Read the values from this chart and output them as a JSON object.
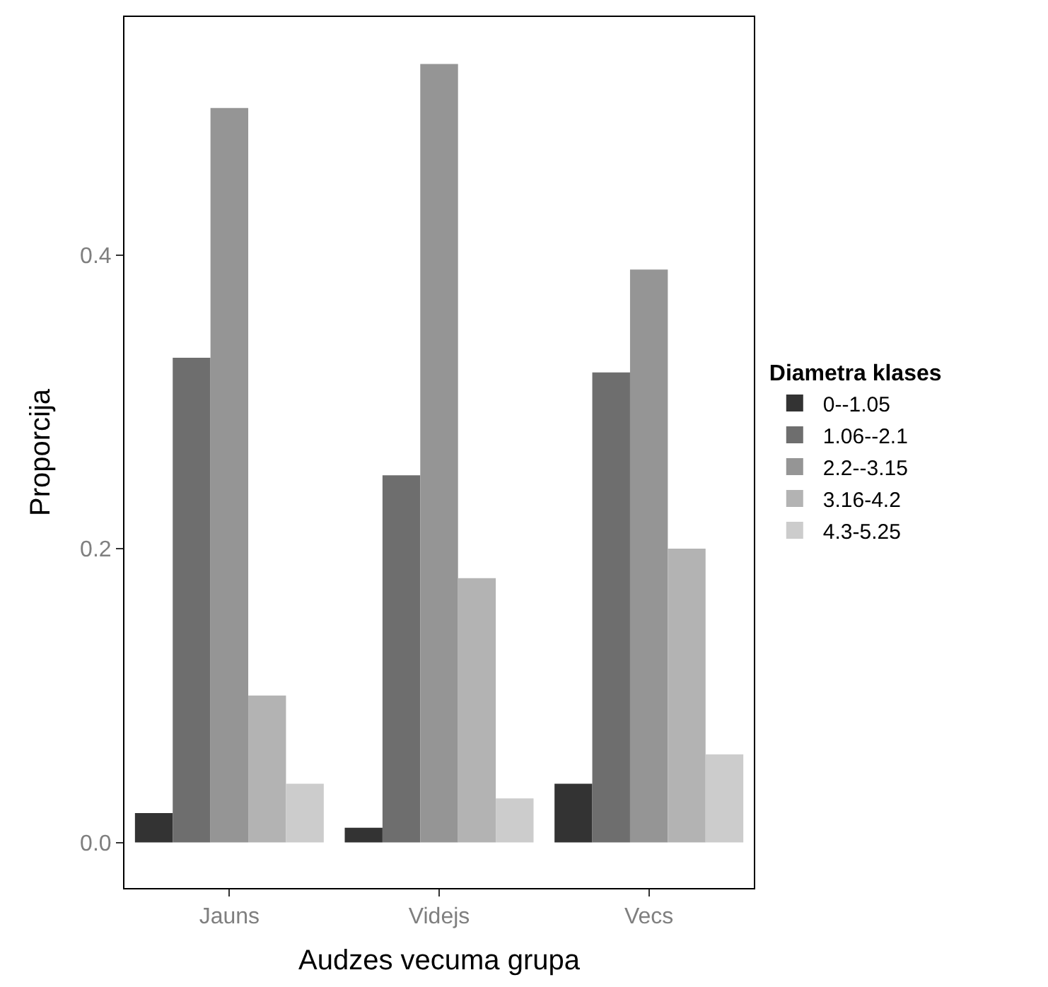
{
  "chart_data": {
    "type": "bar",
    "xlabel": "Audzes vecuma grupa",
    "ylabel": "Proporcija",
    "legend_title": "Diametra klases",
    "categories": [
      "Jauns",
      "Videjs",
      "Vecs"
    ],
    "series": [
      {
        "name": "0--1.05",
        "color": "#333333",
        "values": [
          0.02,
          0.01,
          0.04
        ]
      },
      {
        "name": "1.06--2.1",
        "color": "#6e6e6e",
        "values": [
          0.33,
          0.25,
          0.32
        ]
      },
      {
        "name": "2.2--3.15",
        "color": "#959595",
        "values": [
          0.5,
          0.53,
          0.39
        ]
      },
      {
        "name": "3.16-4.2",
        "color": "#b3b3b3",
        "values": [
          0.1,
          0.18,
          0.2
        ]
      },
      {
        "name": "4.3-5.25",
        "color": "#cccccc",
        "values": [
          0.04,
          0.03,
          0.06
        ]
      }
    ],
    "ylim": [
      -0.031,
      0.562
    ],
    "yticks": [
      {
        "value": 0,
        "label": "0.0"
      },
      {
        "value": 0.2,
        "label": "0.2"
      },
      {
        "value": 0.4,
        "label": "0.4"
      }
    ],
    "legend": "right"
  }
}
